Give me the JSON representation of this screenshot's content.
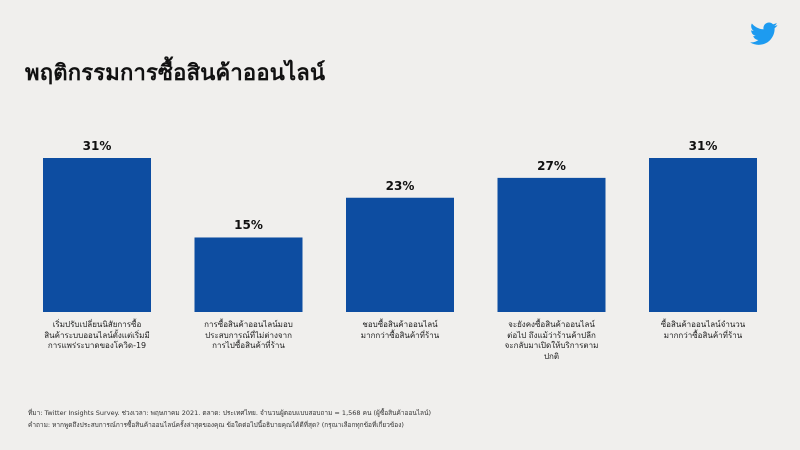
{
  "title": "พฤติกรรมการซื้อสินค้าออนไลน์",
  "logo": "twitter-bird-icon",
  "colors": {
    "bar": "#0d4da1",
    "background": "#f0efed"
  },
  "chart_data": {
    "type": "bar",
    "categories": [
      [
        "เริ่มปรับเปลี่ยนนิสัยการซื้อ",
        "สินค้าระบบออนไลน์ตั้งแต่เริ่มมี",
        "การแพร่ระบาดของโควิด-19"
      ],
      [
        "การซื้อสินค้าออนไลน์มอบ",
        "ประสบการณ์ที่ไม่ต่างจาก",
        "การไปซื้อสินค้าที่ร้าน"
      ],
      [
        "ชอบซื้อสินค้าออนไลน์",
        "มากกว่าซื้อสินค้าที่ร้าน"
      ],
      [
        "จะยังคงซื้อสินค้าออนไลน์",
        "ต่อไป ถึงแม้ว่าร้านค้าปลีก",
        "จะกลับมาเปิดให้บริการตาม",
        "ปกติ"
      ],
      [
        "ซื้อสินค้าออนไลน์จำนวน",
        "มากกว่าซื้อสินค้าที่ร้าน"
      ]
    ],
    "values": [
      31,
      15,
      23,
      27,
      31
    ],
    "value_labels": [
      "31%",
      "15%",
      "23%",
      "27%",
      "31%"
    ],
    "ylim": [
      0,
      31
    ]
  },
  "footnotes": {
    "source": "ที่มา: Twitter Insights Survey. ช่วงเวลา: พฤษภาคม 2021. ตลาด: ประเทศไทย. จำนวนผู้ตอบแบบสอบถาม = 1,568 คน (ผู้ซื้อสินค้าออนไลน์)",
    "question": "คำถาม: หากพูดถึงประสบการณ์การซื้อสินค้าออนไลน์ครั้งล่าสุดของคุณ ข้อใดต่อไปนี้อธิบายคุณได้ดีที่สุด? (กรุณาเลือกทุกข้อที่เกี่ยวข้อง)"
  }
}
